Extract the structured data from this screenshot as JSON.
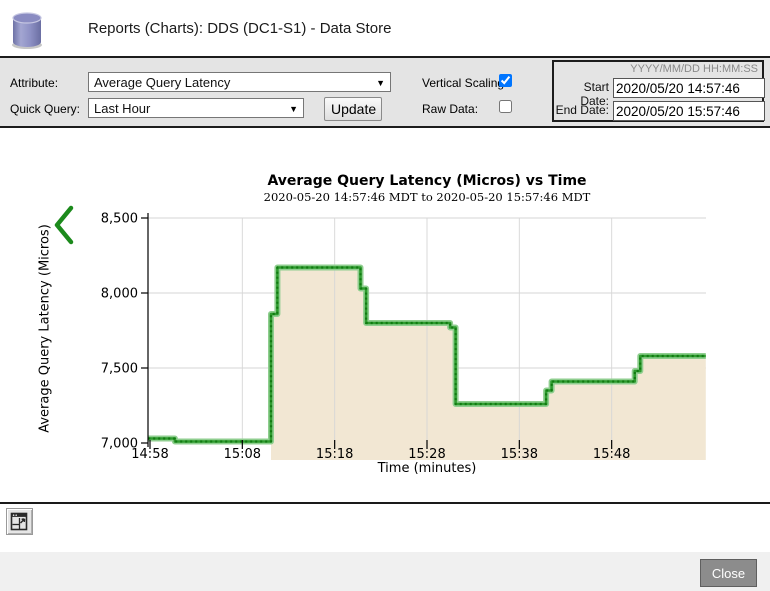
{
  "header": {
    "title": "Reports (Charts): DDS (DC1-S1) - Data Store",
    "icon": "database-cylinder"
  },
  "controls": {
    "attribute_label": "Attribute:",
    "attribute_value": "Average Query Latency",
    "quick_query_label": "Quick Query:",
    "quick_query_value": "Last Hour",
    "update_button": "Update",
    "vertical_scaling_label": "Vertical Scaling:",
    "vertical_scaling_checked": true,
    "raw_data_label": "Raw Data:",
    "raw_data_checked": false,
    "date_format_hint": "YYYY/MM/DD HH:MM:SS",
    "start_date_label": "Start Date:",
    "start_date_value": "2020/05/20 14:57:46",
    "end_date_label": "End Date:",
    "end_date_value": "2020/05/20 15:57:46"
  },
  "chart_data": {
    "type": "area",
    "title": "Average Query Latency (Micros) vs Time",
    "subtitle": "2020-05-20 14:57:46 MDT to 2020-05-20 15:57:46 MDT",
    "xlabel": "Time (minutes)",
    "ylabel": "Average Query Latency (Micros)",
    "ylim": [
      7000,
      8500
    ],
    "grid": true,
    "legend_position": "left",
    "y_ticks": [
      {
        "value": 7000,
        "label": "7,000"
      },
      {
        "value": 7500,
        "label": "7,500"
      },
      {
        "value": 8000,
        "label": "8,000"
      },
      {
        "value": 8500,
        "label": "8,500"
      }
    ],
    "x_ticks": [
      {
        "t": 0,
        "label": "14:58"
      },
      {
        "t": 10,
        "label": "15:08"
      },
      {
        "t": 20,
        "label": "15:18"
      },
      {
        "t": 30,
        "label": "15:28"
      },
      {
        "t": 40,
        "label": "15:38"
      },
      {
        "t": 50,
        "label": "15:48"
      }
    ],
    "series": [
      {
        "name": "Average Query Latency",
        "color": "#2e9b2e",
        "points": [
          [
            -0.2,
            7030
          ],
          [
            2.7,
            7030
          ],
          [
            2.7,
            7010
          ],
          [
            13.1,
            7010
          ],
          [
            13.1,
            7860
          ],
          [
            13.8,
            7860
          ],
          [
            13.8,
            8170
          ],
          [
            22.8,
            8170
          ],
          [
            22.8,
            8030
          ],
          [
            23.4,
            8030
          ],
          [
            23.4,
            7800
          ],
          [
            32.5,
            7800
          ],
          [
            32.5,
            7770
          ],
          [
            33.1,
            7770
          ],
          [
            33.1,
            7260
          ],
          [
            42.9,
            7260
          ],
          [
            42.9,
            7350
          ],
          [
            43.5,
            7350
          ],
          [
            43.5,
            7410
          ],
          [
            52.5,
            7410
          ],
          [
            52.5,
            7480
          ],
          [
            53.1,
            7480
          ],
          [
            53.1,
            7580
          ],
          [
            60.2,
            7580
          ]
        ]
      }
    ],
    "band_color": "#8fce8f",
    "dash_color": "#117a11",
    "fill_color": "#f2e7d3",
    "grid_color": "#d6d6d6",
    "fill_from_t": 13.1
  },
  "footer": {
    "close_button": "Close",
    "export_icon": "open-report-in-new-window"
  }
}
